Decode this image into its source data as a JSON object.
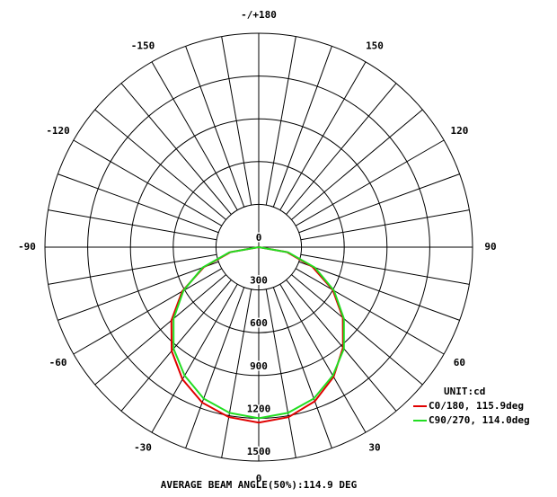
{
  "chart_data": {
    "type": "polar",
    "unit_label": "UNIT:cd",
    "footer": "AVERAGE BEAM ANGLE(50%):114.9 DEG",
    "x": [
      -90,
      -80,
      -70,
      -60,
      -50,
      -40,
      -30,
      -20,
      -10,
      0,
      10,
      20,
      30,
      40,
      50,
      60,
      70,
      80,
      90
    ],
    "series": [
      {
        "name": "C0/180, 115.9deg",
        "color": "#e00000",
        "values": [
          0,
          200,
          410,
          620,
          800,
          950,
          1070,
          1160,
          1210,
          1230,
          1210,
          1150,
          1050,
          920,
          770,
          600,
          400,
          200,
          0
        ]
      },
      {
        "name": "C90/270, 114.0deg",
        "color": "#22dd22",
        "values": [
          0,
          210,
          420,
          610,
          780,
          930,
          1040,
          1130,
          1180,
          1200,
          1180,
          1130,
          1040,
          930,
          780,
          610,
          420,
          210,
          0
        ]
      }
    ],
    "rlim": [
      0,
      1500
    ],
    "rticks": [
      0,
      300,
      600,
      900,
      1200,
      1500
    ],
    "angle_ticks": [
      {
        "value": 180,
        "label": "-/+180"
      },
      150,
      120,
      90,
      60,
      30,
      0,
      -30,
      -60,
      -90,
      -120,
      -150
    ],
    "grid": true
  }
}
